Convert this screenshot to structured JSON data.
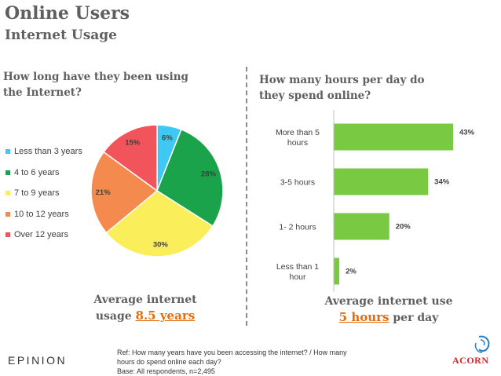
{
  "header": {
    "title": "Online Users",
    "subtitle": "Internet Usage"
  },
  "left_question": "How long have they been using the Internet?",
  "right_question": "How many hours per day do they spend online?",
  "avg_left": {
    "prefix": "Average internet usage ",
    "value": "8.5 years"
  },
  "avg_right": {
    "line1": "Average internet use",
    "value": "5 hours",
    "suffix": " per day"
  },
  "footer": {
    "brand_left": "EPINION",
    "ref_line1": "Ref: How many years have you been accessing the internet? / How many",
    "ref_line2": "hours do spend online each day?",
    "ref_line3": "Base: All respondents, n=2,495",
    "brand_right": "ACORN"
  },
  "chart_data": [
    {
      "type": "pie",
      "categories": [
        "Less than 3 years",
        "4 to 6 years",
        "7 to 9 years",
        "10 to 12 years",
        "Over 12 years"
      ],
      "values": [
        6,
        28,
        30,
        21,
        15
      ],
      "labels": [
        "6%",
        "28%",
        "30%",
        "21%",
        "15%"
      ],
      "colors": [
        "#3fc8f4",
        "#1aa34a",
        "#fbee5b",
        "#f58a4f",
        "#f2545b"
      ],
      "legend": "left"
    },
    {
      "type": "bar",
      "orientation": "horizontal",
      "categories": [
        "More than 5 hours",
        "3-5 hours",
        "1- 2 hours",
        "Less than 1 hour"
      ],
      "values": [
        43,
        34,
        20,
        2
      ],
      "labels": [
        "43%",
        "34%",
        "20%",
        "2%"
      ],
      "color": "#7ac943"
    }
  ]
}
